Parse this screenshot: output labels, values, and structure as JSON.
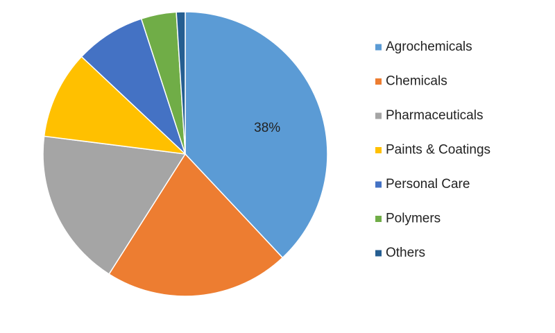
{
  "chart_data": {
    "type": "pie",
    "categories": [
      "Agrochemicals",
      "Chemicals",
      "Pharmaceuticals",
      "Paints & Coatings",
      "Personal Care",
      "Polymers",
      "Others"
    ],
    "values": [
      38,
      21,
      18,
      10,
      8,
      4,
      1
    ],
    "value_labels": [
      "38%",
      null,
      null,
      null,
      null,
      null,
      null
    ],
    "colors": [
      "#5b9bd5",
      "#ed7d31",
      "#a5a5a5",
      "#ffc000",
      "#4472c4",
      "#70ad47",
      "#255e91"
    ],
    "legend": "right"
  }
}
